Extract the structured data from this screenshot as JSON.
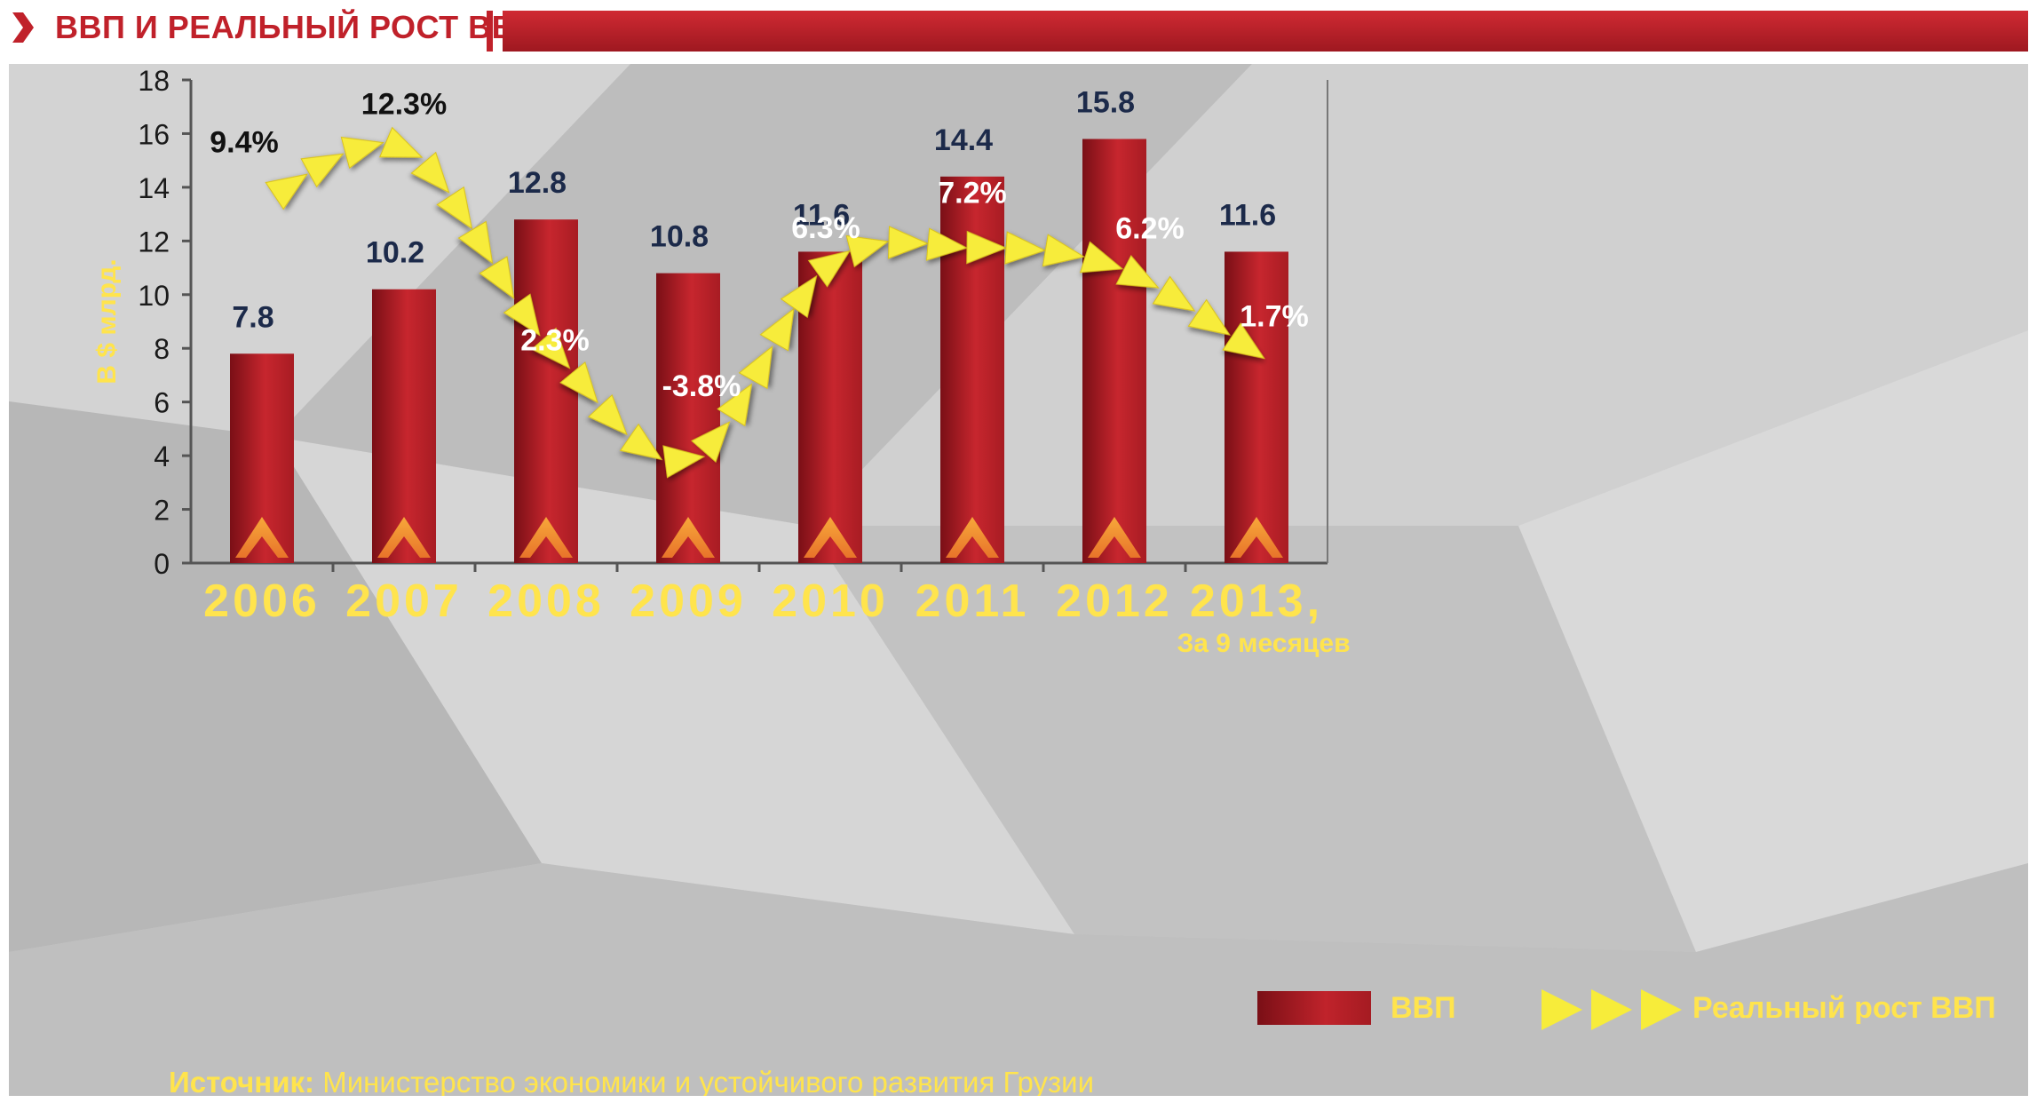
{
  "header": {
    "title": "ВВП И РЕАЛЬНЫЙ РОСТ ВВП"
  },
  "colors": {
    "brand_red": "#c0212a",
    "bar_dark": "#7a0f16",
    "bar_light": "#d12e35",
    "arrow_yellow": "#f7ec3a",
    "label_yellow": "#ffe44d",
    "value_navy": "#1c2a4a"
  },
  "chart_data": {
    "type": "bar",
    "title": "ВВП И РЕАЛЬНЫЙ РОСТ ВВП",
    "ylabel": "В $ млрд.",
    "ylim": [
      0,
      18
    ],
    "yticks": [
      0,
      2,
      4,
      6,
      8,
      10,
      12,
      14,
      16,
      18
    ],
    "categories": [
      "2006",
      "2007",
      "2008",
      "2009",
      "2010",
      "2011",
      "2012",
      "2013,"
    ],
    "category_note": "За 9 месяцев",
    "series": [
      {
        "name": "ВВП",
        "values": [
          7.8,
          10.2,
          12.8,
          10.8,
          11.6,
          14.4,
          15.8,
          11.6
        ],
        "value_labels": [
          "7.8",
          "10.2",
          "12.8",
          "10.8",
          "11.6",
          "14.4",
          "15.8",
          "11.6"
        ]
      },
      {
        "name": "Реальный рост ВВП",
        "values": [
          9.4,
          12.3,
          2.3,
          -3.8,
          6.3,
          7.2,
          6.2,
          1.7
        ],
        "value_labels": [
          "9.4%",
          "12.3%",
          "2.3%",
          "-3.8%",
          "6.3%",
          "7.2%",
          "6.2%",
          "1.7%"
        ]
      }
    ],
    "legend": [
      "ВВП",
      "Реальный рост ВВП"
    ],
    "legend_position": "bottom-right",
    "grid": false
  },
  "source": {
    "label": "Источник:",
    "text": " Министерство экономики и устойчивого развития Грузии"
  }
}
